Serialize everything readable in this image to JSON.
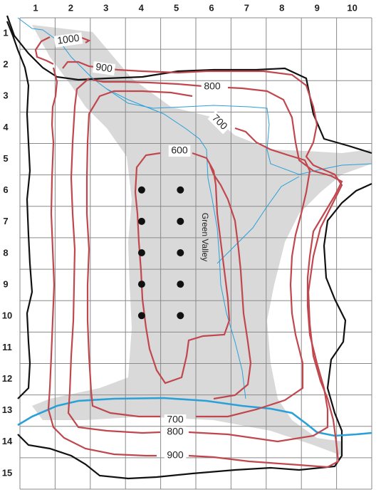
{
  "map": {
    "column_labels": [
      "1",
      "2",
      "3",
      "4",
      "5",
      "6",
      "7",
      "8",
      "9",
      "10"
    ],
    "row_labels": [
      "1",
      "2",
      "3",
      "4",
      "5",
      "6",
      "7",
      "8",
      "9",
      "10",
      "11",
      "12",
      "13",
      "14",
      "15"
    ],
    "contour_labels": [
      "1000",
      "900",
      "800",
      "700",
      "600",
      "700",
      "800",
      "900"
    ],
    "valley_label": "Green Valley",
    "colors": {
      "grid": "#8a8a8a",
      "contour": "#c0474e",
      "boundary": "#111111",
      "river": "#2aa0d8",
      "valley_fill": "#d9d9d9",
      "well_dot": "#111111"
    },
    "wells": [
      {
        "col": 4,
        "row": 6
      },
      {
        "col": 5,
        "row": 6
      },
      {
        "col": 4,
        "row": 7
      },
      {
        "col": 5,
        "row": 7
      },
      {
        "col": 4,
        "row": 8
      },
      {
        "col": 5,
        "row": 8
      },
      {
        "col": 4,
        "row": 9
      },
      {
        "col": 5,
        "row": 9
      },
      {
        "col": 4,
        "row": 10
      },
      {
        "col": 5,
        "row": 10
      }
    ]
  }
}
